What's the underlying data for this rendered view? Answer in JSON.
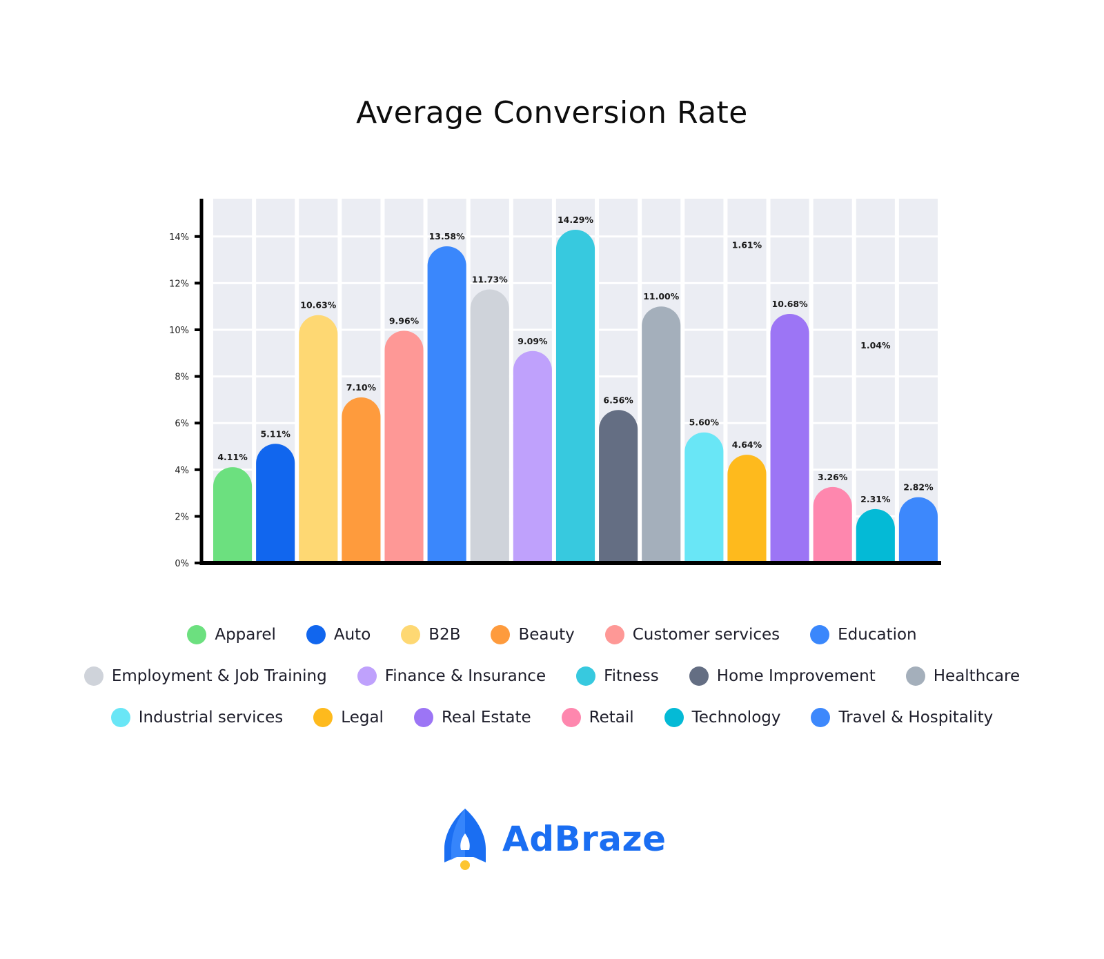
{
  "title": "Average Conversion Rate",
  "chart_data": {
    "type": "bar",
    "title": "Average Conversion Rate",
    "xlabel": "",
    "ylabel": "",
    "ylim": [
      0,
      15.5
    ],
    "grid": true,
    "legend_position": "bottom",
    "y_ticks": [
      "0%",
      "2%",
      "4%",
      "6%",
      "8%",
      "10%",
      "12%",
      "14%"
    ],
    "y_tick_values": [
      0,
      2,
      4,
      6,
      8,
      10,
      12,
      14
    ],
    "categories": [
      "Apparel",
      "Auto",
      "B2B",
      "Beauty",
      "Customer services",
      "Education",
      "Employment & Job Training",
      "Finance & Insurance",
      "Fitness",
      "Home Improvement",
      "Healthcare",
      "Industrial services",
      "Legal",
      "Real Estate",
      "Retail",
      "Technology",
      "Travel & Hospitality"
    ],
    "values": [
      4.11,
      5.11,
      10.63,
      7.1,
      9.96,
      13.58,
      11.73,
      9.09,
      14.29,
      6.56,
      11.0,
      5.6,
      4.64,
      10.68,
      3.26,
      2.31,
      2.82
    ],
    "data_labels": [
      "4.11%",
      "5.11%",
      "10.63%",
      "7.10%",
      "9.96%",
      "13.58%",
      "11.73%",
      "9.09%",
      "14.29%",
      "6.56%",
      "11.00%",
      "5.60%",
      "4.64%",
      "10.68%",
      "3.26%",
      "2.31%",
      "2.82%"
    ],
    "extra_labels": [
      {
        "category": "Legal",
        "text": "1.61%"
      },
      {
        "category": "Technology",
        "text": "1.04%"
      }
    ],
    "colors": [
      "#6ce07f",
      "#1166ee",
      "#fed873",
      "#fe9b3d",
      "#fe9896",
      "#3a87fc",
      "#cfd3da",
      "#bfa1fc",
      "#37c9df",
      "#646e83",
      "#a4afbb",
      "#69e6f6",
      "#feba1d",
      "#9c75f5",
      "#fe87ae",
      "#04bad6",
      "#3d88fc"
    ],
    "track_color": "#ebedf3",
    "axis_color": "#000000"
  },
  "legend": {
    "rows": [
      [
        {
          "label": "Apparel",
          "color": "#6ce07f"
        },
        {
          "label": "Auto",
          "color": "#1166ee"
        },
        {
          "label": "B2B",
          "color": "#fed873"
        },
        {
          "label": "Beauty",
          "color": "#fe9b3d"
        },
        {
          "label": "Customer services",
          "color": "#fe9896"
        },
        {
          "label": "Education",
          "color": "#3a87fc"
        }
      ],
      [
        {
          "label": "Employment & Job Training",
          "color": "#cfd3da"
        },
        {
          "label": "Finance & Insurance",
          "color": "#bfa1fc"
        },
        {
          "label": "Fitness",
          "color": "#37c9df"
        },
        {
          "label": "Home Improvement",
          "color": "#646e83"
        },
        {
          "label": "Healthcare",
          "color": "#a4afbb"
        }
      ],
      [
        {
          "label": "Industrial services",
          "color": "#69e6f6"
        },
        {
          "label": "Legal",
          "color": "#feba1d"
        },
        {
          "label": "Real Estate",
          "color": "#9c75f5"
        },
        {
          "label": "Retail",
          "color": "#fe87ae"
        },
        {
          "label": "Technology",
          "color": "#04bad6"
        },
        {
          "label": "Travel & Hospitality",
          "color": "#3d88fc"
        }
      ]
    ]
  },
  "brand": {
    "name": "AdBraze",
    "icon": "rocket-icon",
    "color": "#1a6ef2",
    "accent": "#fdc530"
  }
}
